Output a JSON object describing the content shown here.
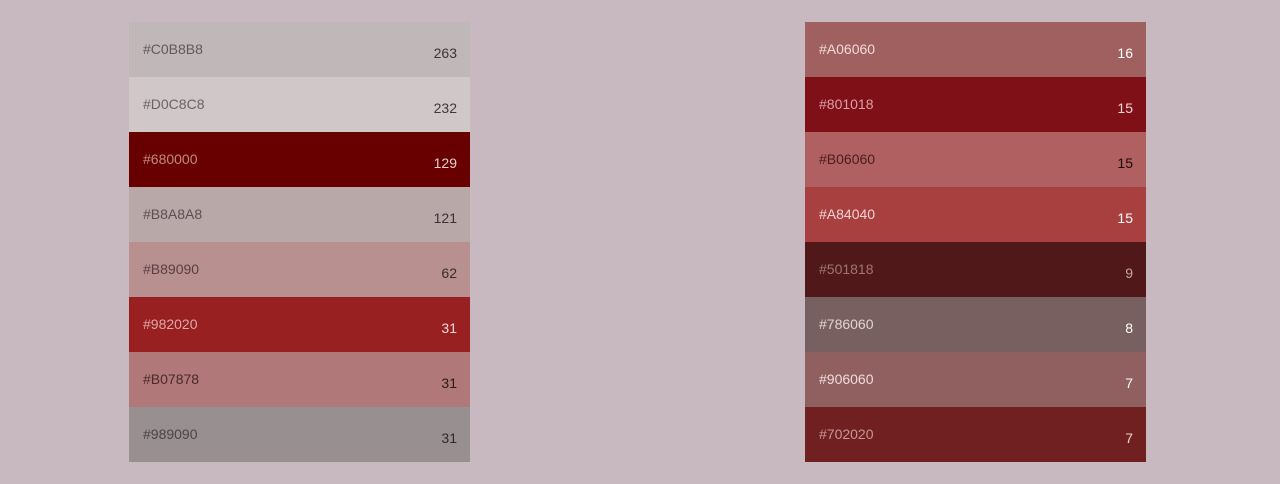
{
  "palettes": [
    {
      "id": "left",
      "swatches": [
        {
          "hex": "#C0B8B8",
          "count": "263",
          "bg": "#C0B8B8",
          "hex_color": "#5E5A5C",
          "count_color": "#3A3637"
        },
        {
          "hex": "#D0C8C8",
          "count": "232",
          "bg": "#D0C8C8",
          "hex_color": "#6A6465",
          "count_color": "#3E393A"
        },
        {
          "hex": "#680000",
          "count": "129",
          "bg": "#680000",
          "hex_color": "#C08A86",
          "count_color": "#E2CFCD"
        },
        {
          "hex": "#B8A8A8",
          "count": "121",
          "bg": "#B8A8A8",
          "hex_color": "#5A4F51",
          "count_color": "#3A3233"
        },
        {
          "hex": "#B89090",
          "count": "62",
          "bg": "#B89090",
          "hex_color": "#5A3E40",
          "count_color": "#3A2A2B"
        },
        {
          "hex": "#982020",
          "count": "31",
          "bg": "#982020",
          "hex_color": "#E0A7A7",
          "count_color": "#F3DADA"
        },
        {
          "hex": "#B07878",
          "count": "31",
          "bg": "#B07878",
          "hex_color": "#4A2A2B",
          "count_color": "#2E1818"
        },
        {
          "hex": "#989090",
          "count": "31",
          "bg": "#989090",
          "hex_color": "#4B4546",
          "count_color": "#2E2A2B"
        }
      ]
    },
    {
      "id": "right",
      "swatches": [
        {
          "hex": "#A06060",
          "count": "16",
          "bg": "#A06060",
          "hex_color": "#F1DADA",
          "count_color": "#FFFFFF"
        },
        {
          "hex": "#801018",
          "count": "15",
          "bg": "#801018",
          "hex_color": "#D9A0A3",
          "count_color": "#F3D9DA"
        },
        {
          "hex": "#B06060",
          "count": "15",
          "bg": "#B06060",
          "hex_color": "#4A1E1F",
          "count_color": "#1E0A0A"
        },
        {
          "hex": "#A84040",
          "count": "15",
          "bg": "#A84040",
          "hex_color": "#F2D2D2",
          "count_color": "#FFFFFF"
        },
        {
          "hex": "#501818",
          "count": "9",
          "bg": "#501818",
          "hex_color": "#A27476",
          "count_color": "#C9A7A8"
        },
        {
          "hex": "#786060",
          "count": "8",
          "bg": "#786060",
          "hex_color": "#E3D3D3",
          "count_color": "#FFFFFF"
        },
        {
          "hex": "#906060",
          "count": "7",
          "bg": "#906060",
          "hex_color": "#F0DCDC",
          "count_color": "#FFFFFF"
        },
        {
          "hex": "#702020",
          "count": "7",
          "bg": "#702020",
          "hex_color": "#C99596",
          "count_color": "#EBD3D3"
        }
      ]
    }
  ]
}
